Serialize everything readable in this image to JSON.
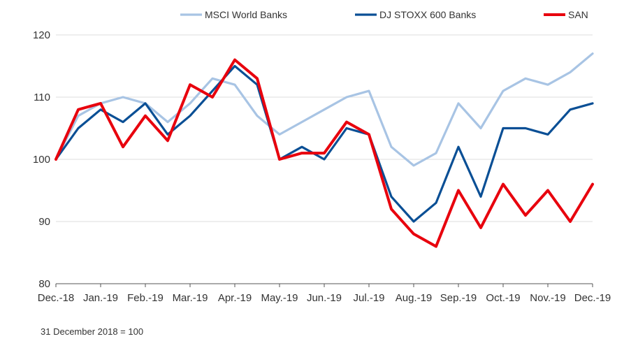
{
  "chart_data": {
    "type": "line",
    "title": "",
    "xlabel": "",
    "ylabel": "",
    "ylim": [
      80,
      120
    ],
    "yticks": [
      80,
      90,
      100,
      110,
      120
    ],
    "grid": "horizontal",
    "legend_position": "top",
    "xticks": [
      "Dec.-18",
      "Jan.-19",
      "Feb.-19",
      "Mar.-19",
      "Apr.-19",
      "May.-19",
      "Jun.-19",
      "Jul.-19",
      "Aug.-19",
      "Sep.-19",
      "Oct.-19",
      "Nov.-19",
      "Dec.-19"
    ],
    "x": [
      0,
      0.5,
      1,
      1.5,
      2,
      2.5,
      3,
      3.5,
      4,
      4.5,
      5,
      5.5,
      6,
      6.5,
      7,
      7.5,
      8,
      8.5,
      9,
      9.5,
      10,
      10.5,
      11,
      11.5,
      12
    ],
    "series": [
      {
        "name": "MSCI World Banks",
        "color": "#a8c4e4",
        "values": [
          100,
          107,
          109,
          110,
          109,
          106,
          109,
          113,
          112,
          107,
          104,
          106,
          108,
          110,
          111,
          102,
          99,
          101,
          109,
          105,
          111,
          113,
          112,
          114,
          117
        ]
      },
      {
        "name": "DJ STOXX 600 Banks",
        "color": "#0a4f95",
        "values": [
          100,
          105,
          108,
          106,
          109,
          104,
          107,
          111,
          115,
          112,
          100,
          102,
          100,
          105,
          104,
          94,
          90,
          93,
          102,
          94,
          105,
          105,
          104,
          108,
          109
        ]
      },
      {
        "name": "SAN",
        "color": "#e8000d",
        "values": [
          100,
          108,
          109,
          102,
          107,
          103,
          112,
          110,
          116,
          113,
          100,
          101,
          101,
          106,
          104,
          92,
          88,
          86,
          95,
          89,
          96,
          91,
          95,
          90,
          96
        ]
      }
    ]
  },
  "footnote": "31 December 2018 = 100"
}
